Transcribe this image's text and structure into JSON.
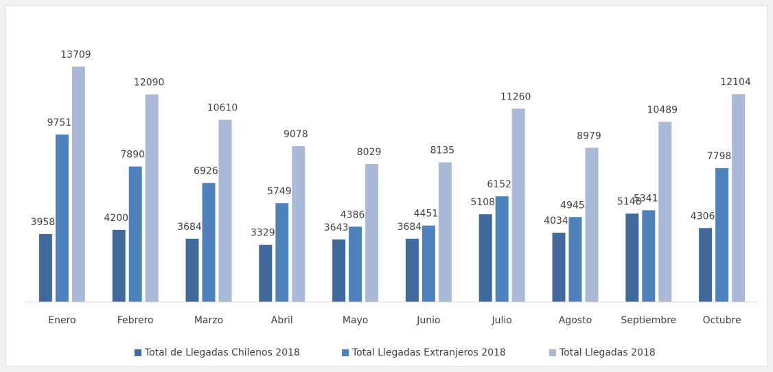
{
  "chart_data": {
    "type": "bar",
    "categories": [
      "Enero",
      "Febrero",
      "Marzo",
      "Abril",
      "Mayo",
      "Junio",
      "Julio",
      "Agosto",
      "Septiembre",
      "Octubre"
    ],
    "series": [
      {
        "name": "Total de Llegadas Chilenos 2018",
        "color": "#41699c",
        "values": [
          3958,
          4200,
          3684,
          3329,
          3643,
          3684,
          5108,
          4034,
          5148,
          4306
        ]
      },
      {
        "name": "Total Llegadas Extranjeros 2018",
        "color": "#4f81bd",
        "values": [
          9751,
          7890,
          6926,
          5749,
          4386,
          4451,
          6152,
          4945,
          5341,
          7798
        ]
      },
      {
        "name": "Total Llegadas 2018",
        "color": "#aab9d8",
        "values": [
          13709,
          12090,
          10610,
          9078,
          8029,
          8135,
          11260,
          8979,
          10489,
          12104
        ]
      }
    ]
  }
}
